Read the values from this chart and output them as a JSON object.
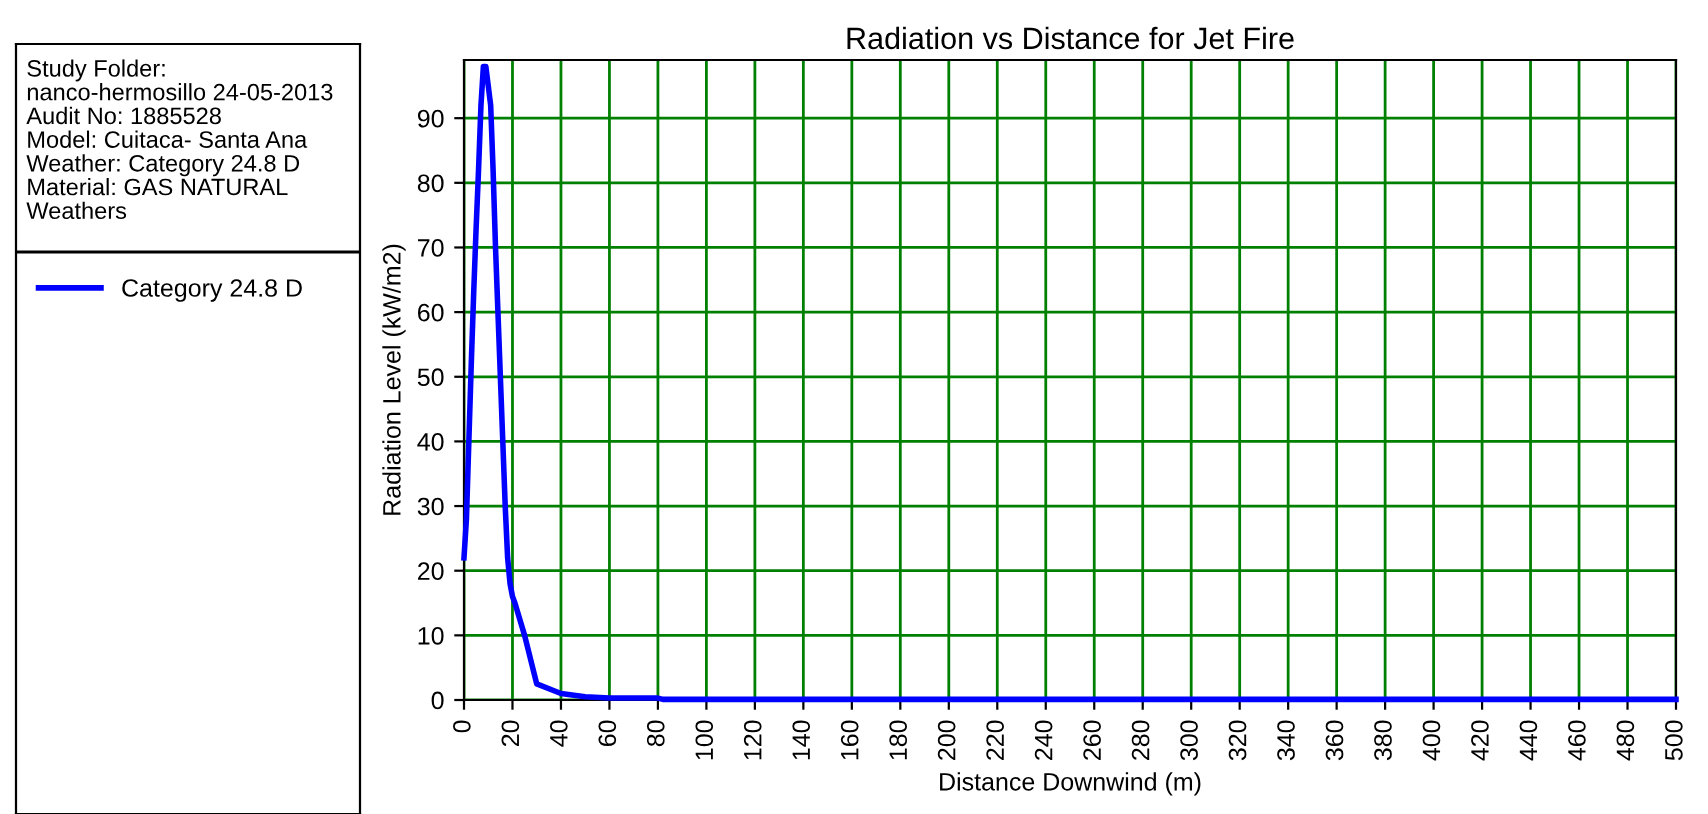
{
  "chart_data": {
    "type": "line",
    "title": "Radiation vs Distance for Jet Fire",
    "xlabel": "Distance Downwind (m)",
    "ylabel": "Radiation Level (kW/m2)",
    "annotations": [
      "Study Folder:\nnanco-hermosillo 24-05-2013\nAudit No: 1885528\nModel: Cuitaca- Santa Ana\nWeather: Category 24.8 D\nMaterial: GAS NATURAL\nWeathers"
    ],
    "series": [
      {
        "name": "Category 24.8 D",
        "color": "#0000ff",
        "x": [
          0,
          1,
          2,
          3,
          4,
          5,
          6,
          7,
          8,
          9,
          11,
          12,
          13,
          14,
          15,
          16,
          17,
          18,
          19,
          20,
          21,
          25,
          30,
          40,
          50,
          60,
          80,
          82,
          500
        ],
        "values": [
          22,
          28,
          40,
          52,
          63,
          73,
          82,
          92,
          98,
          98,
          92,
          82,
          70,
          60,
          50,
          40,
          30,
          22,
          18,
          16,
          15,
          10,
          2.5,
          1,
          0.5,
          0.3,
          0.3,
          0.1,
          0.1
        ]
      }
    ],
    "xlim": [
      0,
      500
    ],
    "ylim": [
      0,
      99
    ],
    "xticks": [
      0,
      20,
      40,
      60,
      80,
      100,
      120,
      140,
      160,
      180,
      200,
      220,
      240,
      260,
      280,
      300,
      320,
      340,
      360,
      380,
      400,
      420,
      440,
      460,
      480,
      500
    ],
    "yticks": [
      0,
      10,
      20,
      30,
      40,
      50,
      60,
      70,
      80,
      90
    ],
    "grid": true,
    "legend": "left",
    "marker": "none",
    "line_style": "solid"
  }
}
